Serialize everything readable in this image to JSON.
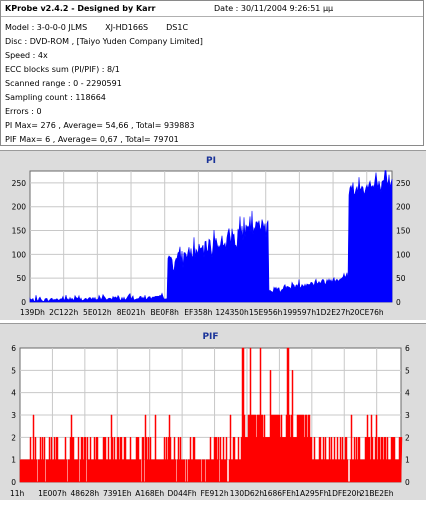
{
  "header": {
    "title": "KProbe v2.4.2 - Designed by Karr",
    "date": "Date : 30/11/2004 9:26:51 μμ"
  },
  "info": {
    "model_prefix": "Model : 3-0-0-0 JLMS",
    "model_name": "XJ-HD166S",
    "model_fw": "DS1C",
    "disc": "Disc : DVD-ROM , [Taiyo Yuden Company Limited]",
    "speed": "Speed : 4x",
    "ecc": "ECC blocks sum (PI/PIF) : 8/1",
    "range": "Scanned range : 0 - 2290591",
    "sampling": "Sampling count : 118664",
    "errors": "Errors : 0",
    "pi_stats": "PI Max= 276 , Average= 54,66 , Total= 939883",
    "pif_stats": "PIF Max= 6 , Average= 0,67 , Total= 79701"
  },
  "chart_data": [
    {
      "type": "area",
      "title": "PI",
      "ylim": [
        0,
        275
      ],
      "yticks": [
        0,
        50,
        100,
        150,
        200,
        250
      ],
      "xtick_labels": [
        "139Dh",
        "2C122h",
        "5E012h",
        "8E021h",
        "BE0F8h",
        "EF358h",
        "124350h",
        "15E956h",
        "199597h",
        "1D2E27h",
        "20CE76h"
      ],
      "x_range_sectors": [
        0,
        2290591
      ],
      "grid": true,
      "series_color": "#0000ff",
      "segments": [
        {
          "x0": 0.0,
          "x1": 0.38,
          "v0": 3,
          "v1": 8,
          "spike": 10
        },
        {
          "x0": 0.38,
          "x1": 0.5,
          "v0": 78,
          "v1": 112,
          "spike": 40
        },
        {
          "x0": 0.5,
          "x1": 0.66,
          "v0": 112,
          "v1": 160,
          "spike": 45
        },
        {
          "x0": 0.66,
          "x1": 0.88,
          "v0": 22,
          "v1": 50,
          "spike": 15
        },
        {
          "x0": 0.88,
          "x1": 1.0,
          "v0": 230,
          "v1": 240,
          "spike": 40
        }
      ],
      "max": 276,
      "average": 54.66
    },
    {
      "type": "bar",
      "title": "PIF",
      "ylim": [
        0,
        6
      ],
      "yticks": [
        0,
        1,
        2,
        3,
        4,
        5,
        6
      ],
      "xtick_labels": [
        "11h",
        "1E007h",
        "48628h",
        "7391Eh",
        "A168Eh",
        "D044Fh",
        "FE912h",
        "130D62h",
        "1686FEh",
        "1A295Fh",
        "1DFE20h",
        "21BE2Eh"
      ],
      "x_range_sectors": [
        0,
        2290591
      ],
      "grid": true,
      "series_color": "#ff0000",
      "segments": [
        {
          "x0": 0.0,
          "x1": 0.58,
          "base": 1,
          "p2": 0.35,
          "p3": 0.02
        },
        {
          "x0": 0.58,
          "x1": 0.76,
          "base": 2,
          "p2": 1,
          "p3": 0.6,
          "p5": 0.12,
          "p6": 0.05
        },
        {
          "x0": 0.76,
          "x1": 1.0,
          "base": 1,
          "p2": 0.5,
          "p3": 0.05
        }
      ],
      "max": 6,
      "average": 0.67
    }
  ]
}
